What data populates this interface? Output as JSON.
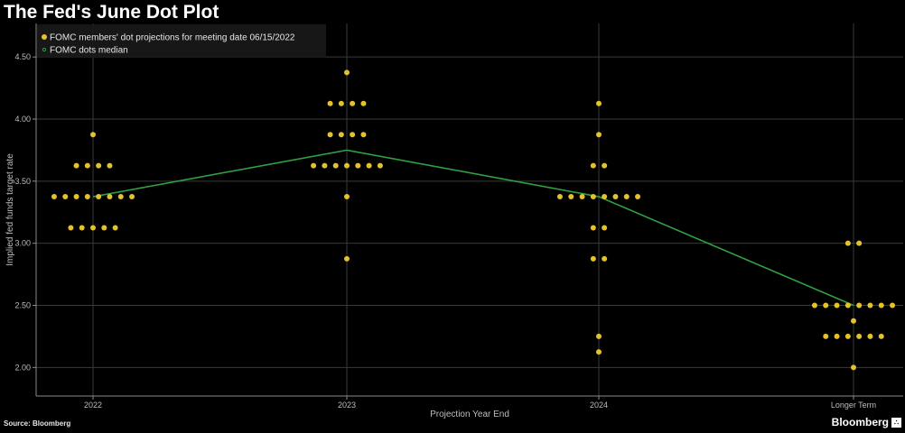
{
  "title": "The Fed's June Dot Plot",
  "source": "Source: Bloomberg",
  "brand": "Bloomberg",
  "colors": {
    "dots": "#e3c22c",
    "median": "#2ea043",
    "grid": "#3a3a3a",
    "background": "#000000"
  },
  "chart_data": {
    "type": "scatter",
    "title": "The Fed's June Dot Plot",
    "xlabel": "Projection Year End",
    "ylabel": "Implied fed funds target rate",
    "categories": [
      "2022",
      "2023",
      "2024",
      "Longer Term"
    ],
    "y_ticks": [
      "2.00",
      "2.50",
      "3.00",
      "3.50",
      "4.00",
      "4.50"
    ],
    "ylim": [
      1.77,
      4.77
    ],
    "grid": true,
    "legend_position": "top-left",
    "series": [
      {
        "name": "FOMC members' dot projections for meeting date 06/15/2022",
        "type": "scatter",
        "points": [
          {
            "x": "2022",
            "values": [
              3.875,
              3.625,
              3.625,
              3.625,
              3.625,
              3.375,
              3.375,
              3.375,
              3.375,
              3.375,
              3.375,
              3.375,
              3.375,
              3.125,
              3.125,
              3.125,
              3.125,
              3.125
            ]
          },
          {
            "x": "2023",
            "values": [
              4.375,
              4.125,
              4.125,
              4.125,
              4.125,
              3.875,
              3.875,
              3.875,
              3.875,
              3.625,
              3.625,
              3.625,
              3.625,
              3.625,
              3.625,
              3.625,
              3.375,
              2.875
            ]
          },
          {
            "x": "2024",
            "values": [
              4.125,
              3.875,
              3.625,
              3.625,
              3.375,
              3.375,
              3.375,
              3.375,
              3.375,
              3.375,
              3.375,
              3.375,
              3.125,
              3.125,
              2.875,
              2.875,
              2.25,
              2.125
            ]
          },
          {
            "x": "Longer Term",
            "values": [
              3.0,
              3.0,
              2.5,
              2.5,
              2.5,
              2.5,
              2.5,
              2.5,
              2.5,
              2.5,
              2.375,
              2.25,
              2.25,
              2.25,
              2.25,
              2.25,
              2.25,
              2.0
            ]
          }
        ]
      },
      {
        "name": "FOMC dots median",
        "type": "line",
        "x": [
          "2022",
          "2023",
          "2024",
          "Longer Term"
        ],
        "values": [
          3.375,
          3.75,
          3.375,
          2.5
        ]
      }
    ]
  }
}
